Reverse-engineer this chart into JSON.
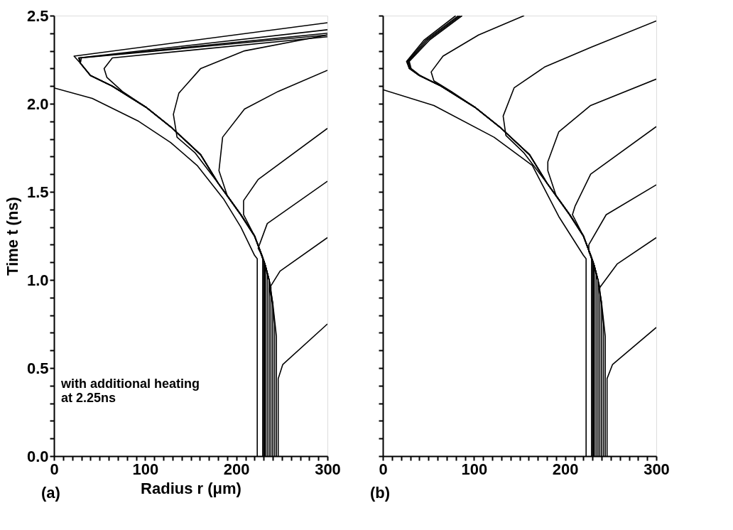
{
  "chart_data": [
    {
      "type": "line",
      "xlabel": "Radius r (μm)",
      "ylabel": "Time t (ns)",
      "annotations": [
        "with additional heating\nat 2.25ns",
        "(a)"
      ],
      "xlim": [
        0,
        300
      ],
      "ylim": [
        0,
        2.5
      ],
      "xticks": [
        0,
        {
          "value": 10,
          "label": null
        },
        {
          "value": 20,
          "label": null
        },
        {
          "value": 30,
          "label": null
        },
        {
          "value": 40,
          "label": null
        },
        {
          "value": 50,
          "label": null
        },
        {
          "value": 60,
          "label": null
        },
        {
          "value": 70,
          "label": null
        },
        {
          "value": 80,
          "label": null
        },
        {
          "value": 90,
          "label": null
        },
        100,
        {
          "value": 110,
          "label": null
        },
        {
          "value": 120,
          "label": null
        },
        {
          "value": 130,
          "label": null
        },
        {
          "value": 140,
          "label": null
        },
        {
          "value": 150,
          "label": null
        },
        {
          "value": 160,
          "label": null
        },
        {
          "value": 170,
          "label": null
        },
        {
          "value": 180,
          "label": null
        },
        {
          "value": 190,
          "label": null
        },
        200,
        {
          "value": 210,
          "label": null
        },
        {
          "value": 220,
          "label": null
        },
        {
          "value": 230,
          "label": null
        },
        {
          "value": 240,
          "label": null
        },
        {
          "value": 250,
          "label": null
        },
        {
          "value": 260,
          "label": null
        },
        {
          "value": 270,
          "label": null
        },
        {
          "value": 280,
          "label": null
        },
        {
          "value": 290,
          "label": null
        },
        300
      ],
      "yticks": [
        {
          "value": 0,
          "label": "0.0"
        },
        {
          "value": 0.1,
          "label": null
        },
        {
          "value": 0.2,
          "label": null
        },
        {
          "value": 0.3,
          "label": null
        },
        {
          "value": 0.4,
          "label": null
        },
        0.5,
        {
          "value": 0.6,
          "label": null
        },
        {
          "value": 0.7,
          "label": null
        },
        {
          "value": 0.8,
          "label": null
        },
        {
          "value": 0.9,
          "label": null
        },
        {
          "value": 1,
          "label": "1.0"
        },
        {
          "value": 1.1,
          "label": null
        },
        {
          "value": 1.2,
          "label": null
        },
        {
          "value": 1.3,
          "label": null
        },
        {
          "value": 1.4,
          "label": null
        },
        1.5,
        {
          "value": 1.6,
          "label": null
        },
        {
          "value": 1.7,
          "label": null
        },
        {
          "value": 1.8,
          "label": null
        },
        {
          "value": 1.9,
          "label": null
        },
        {
          "value": 2,
          "label": "2.0"
        },
        {
          "value": 2.1,
          "label": null
        },
        {
          "value": 2.2,
          "label": null
        },
        {
          "value": 2.3,
          "label": null
        },
        {
          "value": 2.4,
          "label": null
        },
        2.5
      ],
      "grid": false,
      "marker": "none",
      "line_style": "solid",
      "series": [
        {
          "color": "#000000",
          "x": [
            223,
            223,
            220,
            205,
            186,
            157,
            128,
            93,
            42,
            0
          ],
          "values": [
            0,
            1.12,
            1.14,
            1.3,
            1.46,
            1.65,
            1.78,
            1.9,
            2.03,
            2.09
          ]
        },
        {
          "color": "#000000",
          "x": [
            229,
            229,
            228,
            220,
            205,
            180,
            161,
            130,
            101,
            64,
            40,
            29,
            22,
            300
          ],
          "values": [
            0,
            1.12,
            1.14,
            1.25,
            1.37,
            1.55,
            1.71,
            1.86,
            1.98,
            2.1,
            2.16,
            2.23,
            2.27,
            2.46
          ]
        },
        {
          "color": "#000000",
          "x": [
            230,
            230,
            228,
            220,
            205,
            180,
            161,
            130,
            101,
            64,
            40,
            29,
            27,
            300
          ],
          "values": [
            0,
            1.11,
            1.14,
            1.25,
            1.37,
            1.55,
            1.71,
            1.86,
            1.98,
            2.1,
            2.16,
            2.23,
            2.26,
            2.42
          ]
        },
        {
          "color": "#000000",
          "x": [
            231,
            231,
            228,
            220,
            205,
            180,
            161,
            130,
            101,
            64,
            40,
            29,
            28,
            300
          ],
          "values": [
            0,
            1.1,
            1.14,
            1.25,
            1.37,
            1.55,
            1.71,
            1.86,
            1.98,
            2.1,
            2.16,
            2.23,
            2.26,
            2.4
          ]
        },
        {
          "color": "#000000",
          "x": [
            232,
            232,
            228,
            220,
            205,
            180,
            161,
            130,
            101,
            64,
            40,
            29,
            30,
            300
          ],
          "values": [
            0,
            1.08,
            1.14,
            1.25,
            1.37,
            1.55,
            1.71,
            1.86,
            1.98,
            2.1,
            2.16,
            2.23,
            2.26,
            2.39
          ]
        },
        {
          "color": "#000000",
          "x": [
            234,
            234,
            232,
            228,
            220,
            205,
            180,
            161,
            130,
            101,
            75,
            58,
            55,
            64,
            300
          ],
          "values": [
            0,
            1.03,
            1.08,
            1.14,
            1.25,
            1.37,
            1.55,
            1.71,
            1.86,
            1.98,
            2.07,
            2.15,
            2.2,
            2.26,
            2.38
          ]
        },
        {
          "color": "#000000",
          "x": [
            236,
            236,
            232,
            228,
            220,
            205,
            180,
            155,
            135,
            131,
            137,
            161,
            209,
            300
          ],
          "values": [
            0,
            1.0,
            1.08,
            1.14,
            1.25,
            1.37,
            1.55,
            1.72,
            1.81,
            1.94,
            2.06,
            2.2,
            2.3,
            2.39
          ]
        },
        {
          "color": "#000000",
          "x": [
            238,
            238,
            232,
            228,
            220,
            205,
            190,
            181,
            185,
            209,
            246,
            300
          ],
          "values": [
            0,
            0.96,
            1.08,
            1.14,
            1.25,
            1.37,
            1.48,
            1.62,
            1.81,
            1.97,
            2.07,
            2.19
          ]
        },
        {
          "color": "#000000",
          "x": [
            240,
            240,
            236,
            232,
            228,
            220,
            208,
            208,
            224,
            300
          ],
          "values": [
            0,
            0.87,
            1.0,
            1.08,
            1.14,
            1.25,
            1.37,
            1.45,
            1.57,
            1.86
          ]
        },
        {
          "color": "#000000",
          "x": [
            242,
            242,
            239,
            236,
            232,
            226,
            224,
            234,
            300
          ],
          "values": [
            0,
            0.75,
            0.9,
            1.0,
            1.08,
            1.16,
            1.18,
            1.32,
            1.56
          ]
        },
        {
          "color": "#000000",
          "x": [
            244,
            244,
            240,
            236,
            248,
            300
          ],
          "values": [
            0,
            0.68,
            0.87,
            0.95,
            1.05,
            1.24
          ]
        },
        {
          "color": "#000000",
          "x": [
            246,
            246,
            251,
            300
          ],
          "values": [
            0,
            0.44,
            0.52,
            0.75
          ]
        }
      ]
    },
    {
      "type": "line",
      "annotations": [
        "(b)"
      ],
      "xlim": [
        0,
        300
      ],
      "ylim": [
        0,
        2.5
      ],
      "tick_labels": "x",
      "xticks": [
        0,
        {
          "value": 10,
          "label": null
        },
        {
          "value": 20,
          "label": null
        },
        {
          "value": 30,
          "label": null
        },
        {
          "value": 40,
          "label": null
        },
        {
          "value": 50,
          "label": null
        },
        {
          "value": 60,
          "label": null
        },
        {
          "value": 70,
          "label": null
        },
        {
          "value": 80,
          "label": null
        },
        {
          "value": 90,
          "label": null
        },
        100,
        {
          "value": 110,
          "label": null
        },
        {
          "value": 120,
          "label": null
        },
        {
          "value": 130,
          "label": null
        },
        {
          "value": 140,
          "label": null
        },
        {
          "value": 150,
          "label": null
        },
        {
          "value": 160,
          "label": null
        },
        {
          "value": 170,
          "label": null
        },
        {
          "value": 180,
          "label": null
        },
        {
          "value": 190,
          "label": null
        },
        200,
        {
          "value": 210,
          "label": null
        },
        {
          "value": 220,
          "label": null
        },
        {
          "value": 230,
          "label": null
        },
        {
          "value": 240,
          "label": null
        },
        {
          "value": 250,
          "label": null
        },
        {
          "value": 260,
          "label": null
        },
        {
          "value": 270,
          "label": null
        },
        {
          "value": 280,
          "label": null
        },
        {
          "value": 290,
          "label": null
        },
        300
      ],
      "yticks": [
        0,
        {
          "value": 0.1,
          "label": null
        },
        {
          "value": 0.2,
          "label": null
        },
        {
          "value": 0.3,
          "label": null
        },
        {
          "value": 0.4,
          "label": null
        },
        0.5,
        {
          "value": 0.6,
          "label": null
        },
        {
          "value": 0.7,
          "label": null
        },
        {
          "value": 0.8,
          "label": null
        },
        {
          "value": 0.9,
          "label": null
        },
        1,
        {
          "value": 1.1,
          "label": null
        },
        {
          "value": 1.2,
          "label": null
        },
        {
          "value": 1.3,
          "label": null
        },
        {
          "value": 1.4,
          "label": null
        },
        1.5,
        {
          "value": 1.6,
          "label": null
        },
        {
          "value": 1.7,
          "label": null
        },
        {
          "value": 1.8,
          "label": null
        },
        {
          "value": 1.9,
          "label": null
        },
        2,
        {
          "value": 2.1,
          "label": null
        },
        {
          "value": 2.2,
          "label": null
        },
        {
          "value": 2.3,
          "label": null
        },
        {
          "value": 2.4,
          "label": null
        },
        2.5
      ],
      "grid": false,
      "marker": "none",
      "line_style": "solid",
      "series": [
        {
          "color": "#000000",
          "x": [
            223,
            223,
            220,
            193,
            164,
            122,
            56,
            0
          ],
          "values": [
            0,
            1.12,
            1.14,
            1.36,
            1.65,
            1.81,
            1.99,
            2.08
          ]
        },
        {
          "color": "#000000",
          "x": [
            229,
            229,
            228,
            220,
            205,
            180,
            161,
            130,
            101,
            64,
            40,
            29,
            26,
            45,
            80
          ],
          "values": [
            0,
            1.12,
            1.14,
            1.25,
            1.37,
            1.55,
            1.71,
            1.86,
            1.98,
            2.1,
            2.16,
            2.2,
            2.24,
            2.36,
            2.5
          ]
        },
        {
          "color": "#000000",
          "x": [
            230,
            230,
            228,
            220,
            205,
            180,
            161,
            130,
            101,
            64,
            40,
            29,
            27,
            47,
            83
          ],
          "values": [
            0,
            1.11,
            1.14,
            1.25,
            1.37,
            1.55,
            1.71,
            1.86,
            1.98,
            2.1,
            2.16,
            2.2,
            2.24,
            2.36,
            2.5
          ]
        },
        {
          "color": "#000000",
          "x": [
            231,
            231,
            228,
            220,
            205,
            180,
            161,
            130,
            101,
            64,
            40,
            30,
            28,
            49,
            85
          ],
          "values": [
            0,
            1.1,
            1.14,
            1.25,
            1.37,
            1.55,
            1.71,
            1.86,
            1.98,
            2.1,
            2.16,
            2.2,
            2.24,
            2.36,
            2.5
          ]
        },
        {
          "color": "#000000",
          "x": [
            232,
            232,
            228,
            220,
            205,
            180,
            161,
            130,
            101,
            64,
            41,
            31,
            29,
            51,
            87
          ],
          "values": [
            0,
            1.08,
            1.14,
            1.25,
            1.37,
            1.55,
            1.71,
            1.86,
            1.98,
            2.1,
            2.16,
            2.2,
            2.24,
            2.36,
            2.5
          ]
        },
        {
          "color": "#000000",
          "x": [
            234,
            234,
            232,
            228,
            220,
            205,
            180,
            161,
            130,
            101,
            75,
            56,
            53,
            66,
            105,
            155
          ],
          "values": [
            0,
            1.03,
            1.08,
            1.14,
            1.25,
            1.37,
            1.55,
            1.71,
            1.86,
            1.98,
            2.07,
            2.13,
            2.18,
            2.27,
            2.39,
            2.5
          ]
        },
        {
          "color": "#000000",
          "x": [
            236,
            236,
            232,
            228,
            220,
            205,
            180,
            155,
            135,
            132,
            144,
            178,
            228,
            300
          ],
          "values": [
            0,
            1.0,
            1.08,
            1.14,
            1.25,
            1.37,
            1.55,
            1.72,
            1.82,
            1.93,
            2.09,
            2.21,
            2.32,
            2.47
          ]
        },
        {
          "color": "#000000",
          "x": [
            238,
            238,
            232,
            228,
            220,
            205,
            190,
            181,
            181,
            193,
            228,
            300
          ],
          "values": [
            0,
            0.96,
            1.08,
            1.14,
            1.25,
            1.37,
            1.48,
            1.62,
            1.67,
            1.84,
            1.99,
            2.14
          ]
        },
        {
          "color": "#000000",
          "x": [
            240,
            240,
            236,
            232,
            228,
            220,
            208,
            211,
            228,
            300
          ],
          "values": [
            0,
            0.87,
            1.0,
            1.08,
            1.14,
            1.25,
            1.37,
            1.42,
            1.6,
            1.87
          ]
        },
        {
          "color": "#000000",
          "x": [
            242,
            242,
            239,
            236,
            232,
            226,
            226,
            245,
            300
          ],
          "values": [
            0,
            0.75,
            0.9,
            1.0,
            1.08,
            1.16,
            1.2,
            1.37,
            1.54
          ]
        },
        {
          "color": "#000000",
          "x": [
            244,
            244,
            240,
            237,
            257,
            300
          ],
          "values": [
            0,
            0.68,
            0.87,
            0.95,
            1.09,
            1.24
          ]
        },
        {
          "color": "#000000",
          "x": [
            246,
            246,
            252,
            300
          ],
          "values": [
            0,
            0.44,
            0.52,
            0.73
          ]
        }
      ]
    }
  ]
}
